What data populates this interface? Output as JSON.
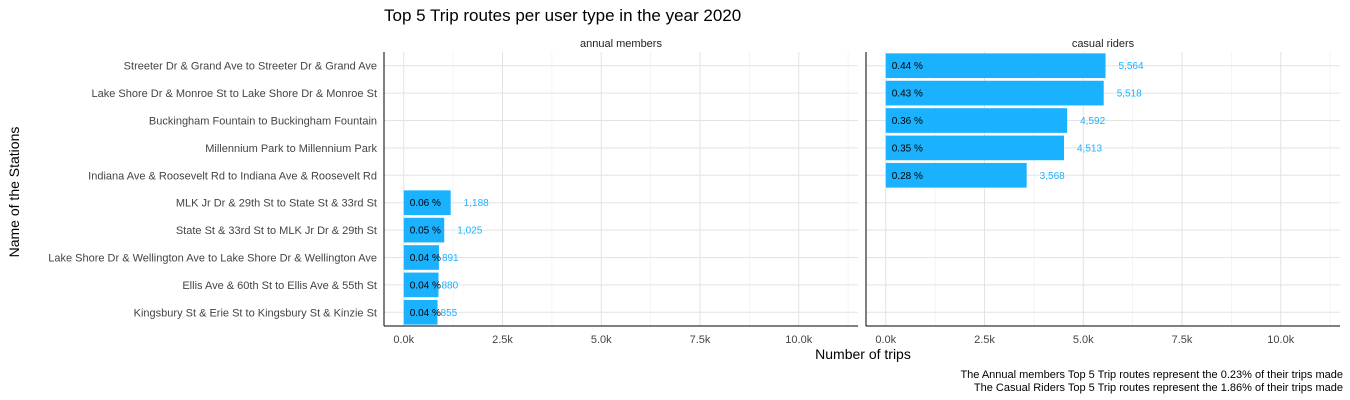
{
  "chart_data": {
    "type": "bar",
    "orientation": "horizontal",
    "title": "Top 5 Trip routes per user type in the year 2020",
    "xlabel": "Number of trips",
    "ylabel": "Name of the Stations",
    "xlim": [
      -500,
      11500
    ],
    "xticks": [
      0,
      2500,
      5000,
      7500,
      10000
    ],
    "xtick_labels": [
      "0.0k",
      "2.5k",
      "5.0k",
      "7.5k",
      "10.0k"
    ],
    "grid": true,
    "bar_color": "#1AB2FF",
    "value_label_color": "#1AB2FF",
    "categories": [
      "Streeter Dr & Grand Ave to Streeter Dr & Grand Ave",
      "Lake Shore Dr & Monroe St to Lake Shore Dr & Monroe St",
      "Buckingham Fountain to Buckingham Fountain",
      "Millennium Park to Millennium Park",
      "Indiana Ave & Roosevelt Rd to Indiana Ave & Roosevelt Rd",
      "MLK Jr Dr & 29th St to State St & 33rd St",
      "State St & 33rd St to MLK Jr Dr & 29th St",
      "Lake Shore Dr & Wellington Ave to Lake Shore Dr & Wellington Ave",
      "Ellis Ave & 60th St to Ellis Ave & 55th St",
      "Kingsbury St & Erie St to Kingsbury St & Kinzie St"
    ],
    "panels": [
      {
        "name": "annual members",
        "values": [
          null,
          null,
          null,
          null,
          null,
          1188,
          1025,
          891,
          880,
          855
        ],
        "value_labels": [
          "",
          "",
          "",
          "",
          "",
          "1,188",
          "1,025",
          "891",
          "880",
          "855"
        ],
        "pct_labels": [
          "",
          "",
          "",
          "",
          "",
          "0.06 %",
          "0.05 %",
          "0.04 %",
          "0.04 %",
          "0.04 %"
        ]
      },
      {
        "name": "casual riders",
        "values": [
          5564,
          5518,
          4592,
          4513,
          3568,
          null,
          null,
          null,
          null,
          null
        ],
        "value_labels": [
          "5,564",
          "5,518",
          "4,592",
          "4,513",
          "3,568",
          "",
          "",
          "",
          "",
          ""
        ],
        "pct_labels": [
          "0.44 %",
          "0.43 %",
          "0.36 %",
          "0.35 %",
          "0.28 %",
          "",
          "",
          "",
          "",
          ""
        ]
      }
    ],
    "caption": [
      "The Annual members Top 5 Trip routes represent the 0.23% of their trips made",
      "The Casual Riders Top 5 Trip routes represent the 1.86% of their trips made"
    ]
  }
}
